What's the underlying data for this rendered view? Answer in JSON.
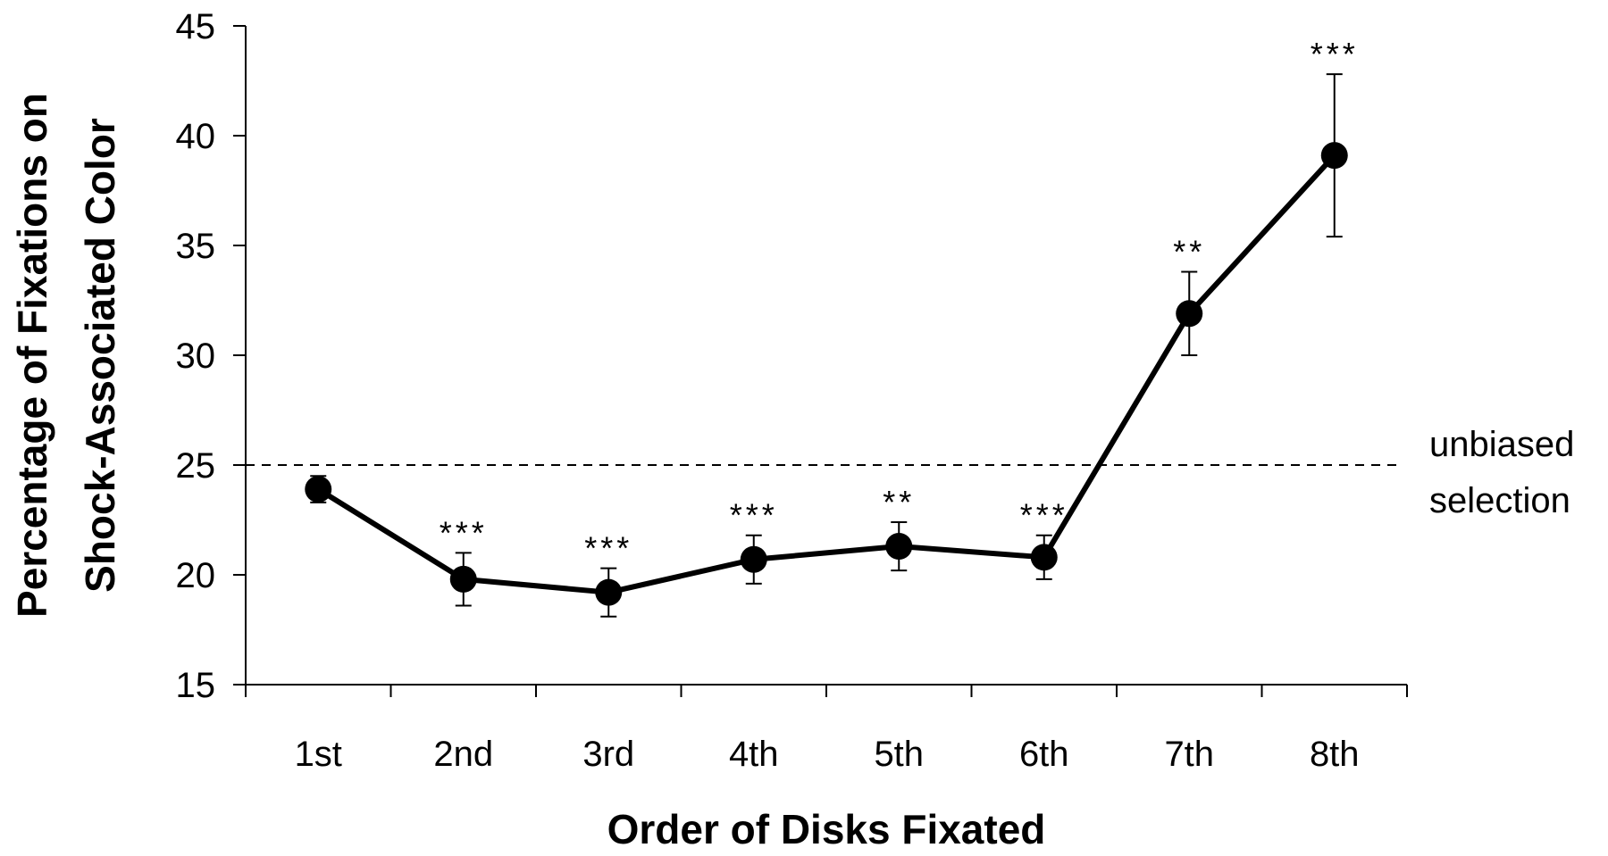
{
  "chart_data": {
    "type": "line",
    "title": "",
    "xlabel": "Order of Disks Fixated",
    "ylabel_lines": [
      "Percentage of Fixations on",
      "Shock-Associated Color"
    ],
    "categories": [
      "1st",
      "2nd",
      "3rd",
      "4th",
      "5th",
      "6th",
      "7th",
      "8th"
    ],
    "series": [
      {
        "values": [
          23.9,
          19.8,
          19.2,
          20.7,
          21.3,
          20.8,
          31.9,
          39.1
        ],
        "error": [
          0.6,
          1.2,
          1.1,
          1.1,
          1.1,
          1.0,
          1.9,
          3.7
        ],
        "color": "#000000"
      }
    ],
    "significance": [
      "",
      "***",
      "***",
      "***",
      "**",
      "***",
      "**",
      "***"
    ],
    "ylim": [
      15,
      45
    ],
    "yticks": [
      15,
      20,
      25,
      30,
      35,
      40,
      45
    ],
    "reference_line": {
      "value": 25,
      "label_lines": [
        "unbiased",
        "selection"
      ],
      "style": "dashed"
    },
    "grid": false,
    "legend": "none"
  }
}
